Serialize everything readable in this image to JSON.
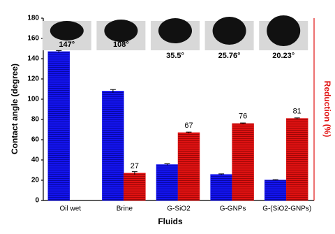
{
  "chart_data": {
    "type": "bar",
    "x_label": "Fluids",
    "y_label": "Contact angle (degree)",
    "y2_label": "Reduction (%)",
    "categories": [
      "Oil wet",
      "Brine",
      "G-SiO2",
      "G-GNPs",
      "G-(SiO2-GNPs)"
    ],
    "series": [
      {
        "color": "#1414f0",
        "values": [
          147,
          108,
          35.5,
          25.76,
          20.23
        ],
        "errors": [
          1,
          1.5,
          0.7,
          0.5,
          0.3
        ]
      },
      {
        "color": "#e01212",
        "values": [
          null,
          27,
          67,
          76,
          81
        ],
        "errors": [
          null,
          1.5,
          0.5,
          0.5,
          0.5
        ]
      }
    ],
    "annotations": [
      "147°",
      "108°",
      "35.5°",
      "25.76°",
      "20.23°"
    ],
    "ylim": [
      0,
      180
    ],
    "yticks": [
      0,
      20,
      40,
      60,
      80,
      100,
      120,
      140,
      160,
      180
    ],
    "y2_color": "#e01212"
  }
}
